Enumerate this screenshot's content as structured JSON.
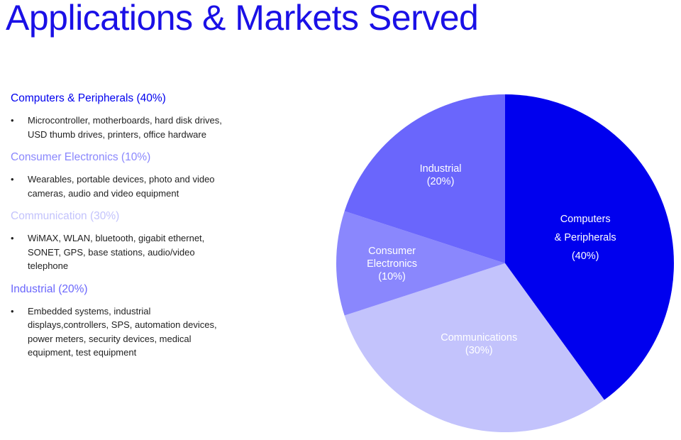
{
  "title": "Applications & Markets Served",
  "colors": {
    "title": "#1a10e6",
    "computers": "#0000ee",
    "consumer": "#8a87fd",
    "communication": "#c3c3fc",
    "industrial": "#6a66fc"
  },
  "categories": [
    {
      "heading": "Computers & Peripherals (40%)",
      "color": "#0000ee",
      "bullet": "•",
      "lines": [
        "Microcontroller, motherboards, hard disk drives,",
        "USD thumb drives, printers, office hardware"
      ]
    },
    {
      "heading": "Consumer Electronics (10%)",
      "color": "#8a87fd",
      "bullet": "•",
      "lines": [
        "Wearables, portable devices, photo and video",
        "cameras, audio and video equipment"
      ]
    },
    {
      "heading": "Communication (30%)",
      "color": "#c3c3fc",
      "bullet": "•",
      "lines": [
        "WiMAX, WLAN, bluetooth, gigabit ethernet,",
        "SONET, GPS, base stations, audio/video",
        "telephone"
      ]
    },
    {
      "heading": "Industrial (20%)",
      "color": "#6a66fc",
      "bullet": "•",
      "lines": [
        "Embedded systems, industrial",
        "displays,controllers, SPS, automation devices,",
        "power meters, security devices, medical",
        "equipment, test equipment"
      ]
    }
  ],
  "chart_data": {
    "type": "pie",
    "slices": [
      {
        "key": "computers",
        "label_lines": [
          "Computers",
          "& Peripherals",
          "(40%)"
        ],
        "value": 40,
        "color": "#0000ee"
      },
      {
        "key": "communications",
        "label_lines": [
          "Communications",
          "(30%)"
        ],
        "value": 30,
        "color": "#c3c3fc"
      },
      {
        "key": "consumer",
        "label_lines": [
          "Consumer",
          "Electronics",
          "(10%)"
        ],
        "value": 10,
        "color": "#8a87fd"
      },
      {
        "key": "industrial",
        "label_lines": [
          "Industrial",
          "(20%)"
        ],
        "value": 20,
        "color": "#6a66fc"
      }
    ]
  }
}
